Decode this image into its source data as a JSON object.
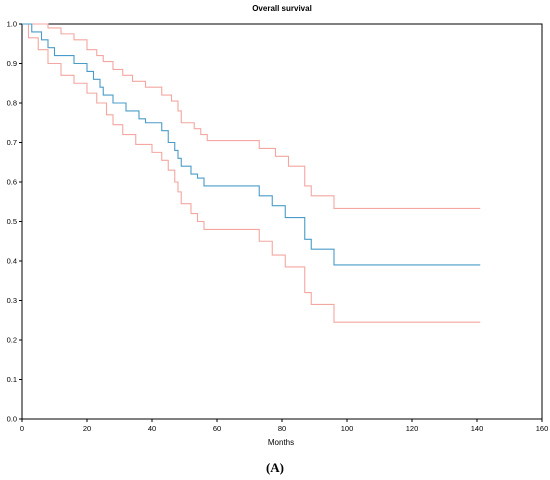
{
  "chart_data": {
    "type": "line",
    "title": "Overall survival",
    "xlabel": "Months",
    "ylabel": "",
    "caption": "(A)",
    "xlim": [
      0,
      160
    ],
    "ylim": [
      0.0,
      1.0
    ],
    "xticks": [
      "0",
      "20",
      "40",
      "60",
      "80",
      "100",
      "120",
      "140",
      "160"
    ],
    "yticks": [
      "0.0",
      "0.1",
      "0.2",
      "0.3",
      "0.4",
      "0.5",
      "0.6",
      "0.7",
      "0.8",
      "0.9",
      "1.0"
    ],
    "grid": false,
    "step": true,
    "series": [
      {
        "role": "estimate",
        "color": "#4a9cc8",
        "points": [
          [
            0,
            1.0
          ],
          [
            3,
            1.0
          ],
          [
            3,
            0.98
          ],
          [
            6,
            0.98
          ],
          [
            6,
            0.96
          ],
          [
            8,
            0.96
          ],
          [
            8,
            0.94
          ],
          [
            10,
            0.94
          ],
          [
            10,
            0.92
          ],
          [
            16,
            0.92
          ],
          [
            16,
            0.9
          ],
          [
            20,
            0.9
          ],
          [
            20,
            0.88
          ],
          [
            22,
            0.88
          ],
          [
            22,
            0.86
          ],
          [
            24,
            0.86
          ],
          [
            24,
            0.84
          ],
          [
            25,
            0.84
          ],
          [
            25,
            0.82
          ],
          [
            28,
            0.82
          ],
          [
            28,
            0.8
          ],
          [
            32,
            0.8
          ],
          [
            32,
            0.78
          ],
          [
            36,
            0.78
          ],
          [
            36,
            0.76
          ],
          [
            38,
            0.76
          ],
          [
            38,
            0.75
          ],
          [
            43,
            0.75
          ],
          [
            43,
            0.73
          ],
          [
            45,
            0.73
          ],
          [
            45,
            0.7
          ],
          [
            47,
            0.7
          ],
          [
            47,
            0.68
          ],
          [
            48,
            0.68
          ],
          [
            48,
            0.66
          ],
          [
            49,
            0.66
          ],
          [
            49,
            0.64
          ],
          [
            52,
            0.64
          ],
          [
            52,
            0.62
          ],
          [
            54,
            0.62
          ],
          [
            54,
            0.61
          ],
          [
            56,
            0.61
          ],
          [
            56,
            0.59
          ],
          [
            73,
            0.59
          ],
          [
            73,
            0.565
          ],
          [
            77,
            0.565
          ],
          [
            77,
            0.54
          ],
          [
            81,
            0.54
          ],
          [
            81,
            0.51
          ],
          [
            87,
            0.51
          ],
          [
            87,
            0.455
          ],
          [
            89,
            0.455
          ],
          [
            89,
            0.43
          ],
          [
            96,
            0.43
          ],
          [
            96,
            0.39
          ],
          [
            141,
            0.39
          ]
        ]
      },
      {
        "role": "upper confidence bound",
        "color": "#f4a6a0",
        "points": [
          [
            0,
            1.0
          ],
          [
            8,
            1.0
          ],
          [
            8,
            0.99
          ],
          [
            12,
            0.99
          ],
          [
            12,
            0.975
          ],
          [
            16,
            0.975
          ],
          [
            16,
            0.96
          ],
          [
            20,
            0.96
          ],
          [
            20,
            0.935
          ],
          [
            23,
            0.935
          ],
          [
            23,
            0.92
          ],
          [
            25,
            0.92
          ],
          [
            25,
            0.905
          ],
          [
            28,
            0.905
          ],
          [
            28,
            0.885
          ],
          [
            31,
            0.885
          ],
          [
            31,
            0.87
          ],
          [
            34,
            0.87
          ],
          [
            34,
            0.855
          ],
          [
            38,
            0.855
          ],
          [
            38,
            0.84
          ],
          [
            43,
            0.84
          ],
          [
            43,
            0.82
          ],
          [
            46,
            0.82
          ],
          [
            46,
            0.805
          ],
          [
            48,
            0.805
          ],
          [
            48,
            0.78
          ],
          [
            49,
            0.78
          ],
          [
            49,
            0.75
          ],
          [
            53,
            0.75
          ],
          [
            53,
            0.735
          ],
          [
            55,
            0.735
          ],
          [
            55,
            0.72
          ],
          [
            57,
            0.72
          ],
          [
            57,
            0.705
          ],
          [
            73,
            0.705
          ],
          [
            73,
            0.685
          ],
          [
            78,
            0.685
          ],
          [
            78,
            0.665
          ],
          [
            82,
            0.665
          ],
          [
            82,
            0.64
          ],
          [
            87,
            0.64
          ],
          [
            87,
            0.59
          ],
          [
            89,
            0.59
          ],
          [
            89,
            0.565
          ],
          [
            96,
            0.565
          ],
          [
            96,
            0.533
          ],
          [
            141,
            0.533
          ]
        ]
      },
      {
        "role": "lower confidence bound",
        "color": "#f4a6a0",
        "points": [
          [
            0,
            1.0
          ],
          [
            2,
            1.0
          ],
          [
            2,
            0.965
          ],
          [
            5,
            0.965
          ],
          [
            5,
            0.935
          ],
          [
            8,
            0.935
          ],
          [
            8,
            0.9
          ],
          [
            12,
            0.9
          ],
          [
            12,
            0.87
          ],
          [
            16,
            0.87
          ],
          [
            16,
            0.85
          ],
          [
            20,
            0.85
          ],
          [
            20,
            0.825
          ],
          [
            23,
            0.825
          ],
          [
            23,
            0.8
          ],
          [
            26,
            0.8
          ],
          [
            26,
            0.77
          ],
          [
            28,
            0.77
          ],
          [
            28,
            0.745
          ],
          [
            31,
            0.745
          ],
          [
            31,
            0.72
          ],
          [
            35,
            0.72
          ],
          [
            35,
            0.695
          ],
          [
            40,
            0.695
          ],
          [
            40,
            0.675
          ],
          [
            43,
            0.675
          ],
          [
            43,
            0.655
          ],
          [
            45,
            0.655
          ],
          [
            45,
            0.63
          ],
          [
            47,
            0.63
          ],
          [
            47,
            0.6
          ],
          [
            48,
            0.6
          ],
          [
            48,
            0.575
          ],
          [
            49,
            0.575
          ],
          [
            49,
            0.545
          ],
          [
            52,
            0.545
          ],
          [
            52,
            0.52
          ],
          [
            54,
            0.52
          ],
          [
            54,
            0.5
          ],
          [
            56,
            0.5
          ],
          [
            56,
            0.48
          ],
          [
            73,
            0.48
          ],
          [
            73,
            0.45
          ],
          [
            77,
            0.45
          ],
          [
            77,
            0.415
          ],
          [
            81,
            0.415
          ],
          [
            81,
            0.385
          ],
          [
            87,
            0.385
          ],
          [
            87,
            0.32
          ],
          [
            89,
            0.32
          ],
          [
            89,
            0.29
          ],
          [
            96,
            0.29
          ],
          [
            96,
            0.245
          ],
          [
            141,
            0.245
          ]
        ]
      }
    ]
  }
}
